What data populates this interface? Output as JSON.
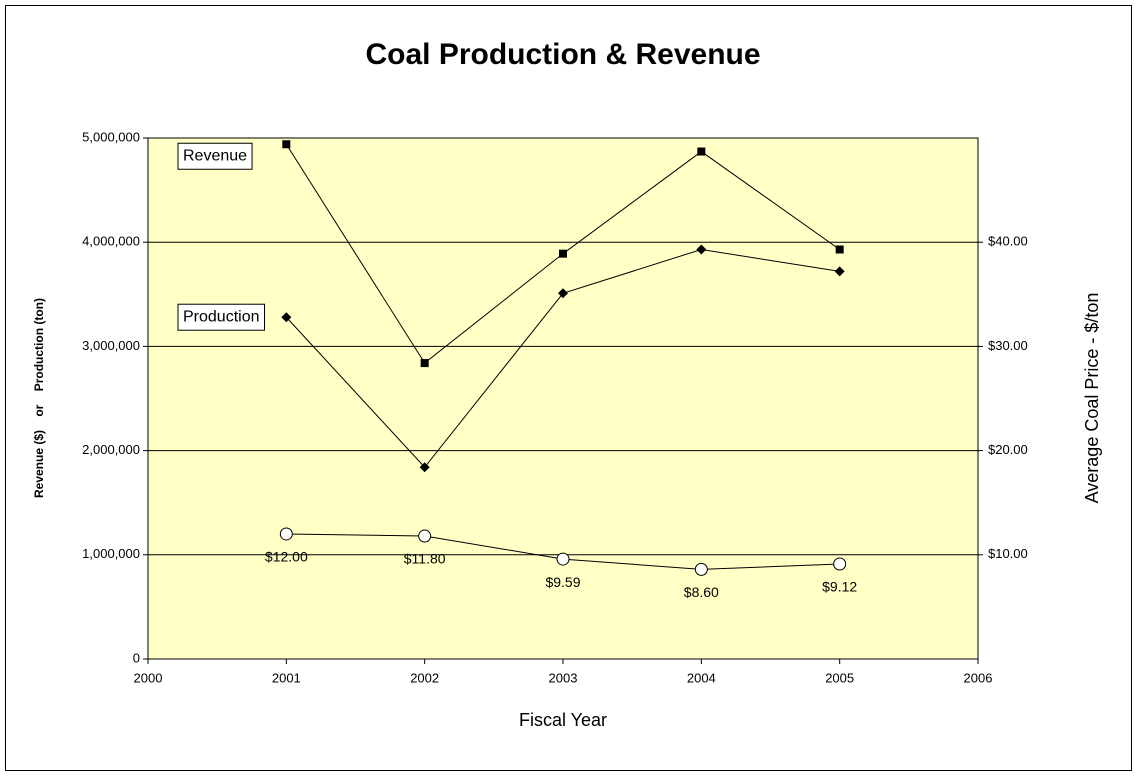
{
  "chart_data": {
    "type": "line",
    "title": "Coal Production & Revenue",
    "x_label": "Fiscal Year",
    "y_label": "Revenue ($)    or    Production (ton)",
    "y2_label": "Average Coal Price - $/ton",
    "x": [
      2001,
      2002,
      2003,
      2004,
      2005
    ],
    "xlim": [
      2000,
      2006
    ],
    "xticks": [
      2000,
      2001,
      2002,
      2003,
      2004,
      2005,
      2006
    ],
    "ylim": [
      0,
      5000000
    ],
    "yticks": [
      {
        "value": 0,
        "label": "0"
      },
      {
        "value": 1000000,
        "label": "1,000,000"
      },
      {
        "value": 2000000,
        "label": "2,000,000"
      },
      {
        "value": 3000000,
        "label": "3,000,000"
      },
      {
        "value": 4000000,
        "label": "4,000,000"
      },
      {
        "value": 5000000,
        "label": "5,000,000"
      }
    ],
    "y2lim": [
      0,
      50
    ],
    "y2ticks": [
      {
        "value": 10,
        "label": "$10.00"
      },
      {
        "value": 20,
        "label": "$20.00"
      },
      {
        "value": 30,
        "label": "$30.00"
      },
      {
        "value": 40,
        "label": "$40.00"
      }
    ],
    "grid": true,
    "plot_background": "#ffffc6",
    "series": [
      {
        "name": "Revenue",
        "color": "#000000",
        "marker": "square",
        "values": [
          4940000,
          2840000,
          3890000,
          4870000,
          3930000
        ]
      },
      {
        "name": "Production",
        "color": "#000000",
        "marker": "diamond",
        "values": [
          3280000,
          1840000,
          3510000,
          3930000,
          3720000
        ]
      },
      {
        "color": "#000000",
        "marker": "circle",
        "axis": "y2",
        "values": [
          12.0,
          11.8,
          9.59,
          8.6,
          9.12
        ],
        "value_labels": [
          "$12.00",
          "$11.80",
          "$9.59",
          "$8.60",
          "$9.12"
        ]
      }
    ]
  }
}
